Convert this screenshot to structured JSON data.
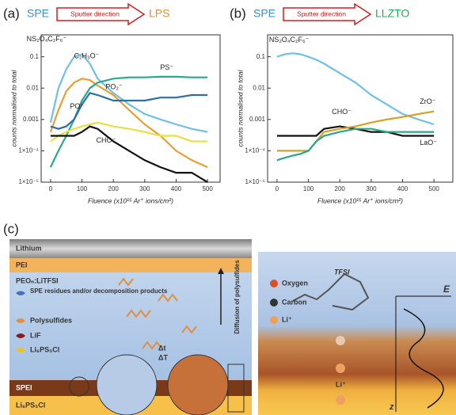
{
  "chart_data": [
    {
      "type": "line",
      "panel_label": "(a)",
      "header_left": "SPE",
      "header_middle": "Sputter direction",
      "header_right": "LPS",
      "x_label": "Fluence (x10¹⁵ Ar⁺ ions/cm²)",
      "y_label": "counts normalised to total",
      "log_y": true,
      "x": [
        0,
        25,
        50,
        75,
        100,
        125,
        150,
        200,
        250,
        300,
        350,
        400,
        450,
        500
      ],
      "xlim": [
        -30,
        540
      ],
      "xticks": [
        0,
        100,
        200,
        300,
        400,
        500
      ],
      "ylim": [
        1e-05,
        0.5
      ],
      "yticks": [
        {
          "value": 1e-05,
          "label": "1×10⁻⁵"
        },
        {
          "value": 0.0001,
          "label": "1×10⁻⁴"
        },
        0.001,
        0.01,
        0.1
      ],
      "series": [
        {
          "name": "NS₂O₄C₂F₆⁻",
          "color": "#6fc0e6",
          "values": [
            0.0008,
            0.01,
            0.04,
            0.1,
            0.12,
            0.06,
            0.02,
            0.007,
            0.003,
            0.0015,
            0.001,
            0.0007,
            0.0005,
            0.0004
          ]
        },
        {
          "name": "C₂H₃O⁻",
          "color": "#e8a030",
          "values": [
            0.0004,
            0.002,
            0.008,
            0.015,
            0.02,
            0.018,
            0.012,
            0.006,
            0.002,
            0.0007,
            0.0003,
            0.0001,
            5e-05,
            3e-05
          ]
        },
        {
          "name": "PS⁻",
          "color": "#2aa88a",
          "values": [
            3e-05,
            0.0001,
            0.0003,
            0.001,
            0.004,
            0.01,
            0.015,
            0.02,
            0.022,
            0.022,
            0.023,
            0.023,
            0.022,
            0.022
          ]
        },
        {
          "name": "PO₂⁻",
          "color": "#2a6fa8",
          "values": [
            0.0006,
            0.0005,
            0.0006,
            0.001,
            0.003,
            0.007,
            0.006,
            0.004,
            0.004,
            0.004,
            0.005,
            0.005,
            0.006,
            0.006
          ]
        },
        {
          "name": "PO⁻",
          "color": "#e6e040",
          "values": [
            0.0002,
            0.0003,
            0.0004,
            0.0005,
            0.0006,
            0.0007,
            0.0008,
            0.0006,
            0.0005,
            0.0004,
            0.0003,
            0.0003,
            0.0002,
            0.0002
          ]
        },
        {
          "name": "CHO⁻",
          "color": "#111111",
          "values": [
            0.0003,
            0.0003,
            0.0003,
            0.0003,
            0.0004,
            0.0006,
            0.0005,
            0.0002,
            0.0001,
            5e-05,
            3e-05,
            2e-05,
            2e-05,
            1e-05
          ]
        }
      ]
    },
    {
      "type": "line",
      "panel_label": "(b)",
      "header_left": "SPE",
      "header_middle": "Sputter direction",
      "header_right": "LLZTO",
      "x_label": "Fluence (x10¹⁵ Ar⁺ ions/cm²)",
      "y_label": "counts normalised to total",
      "log_y": true,
      "x": [
        0,
        25,
        50,
        75,
        100,
        125,
        150,
        200,
        250,
        300,
        350,
        400,
        450,
        500
      ],
      "xlim": [
        -30,
        560
      ],
      "xticks": [
        0,
        100,
        200,
        300,
        400,
        500
      ],
      "ylim": [
        1e-05,
        0.5
      ],
      "yticks": [
        {
          "value": 1e-05,
          "label": "1×10⁻⁵"
        },
        {
          "value": 0.0001,
          "label": "1×10⁻⁴"
        },
        0.001,
        0.01,
        0.1
      ],
      "series": [
        {
          "name": "NS₂O₄C₂F₆⁻",
          "color": "#6fc0e6",
          "values": [
            0.1,
            0.12,
            0.13,
            0.12,
            0.1,
            0.08,
            0.06,
            0.03,
            0.015,
            0.006,
            0.003,
            0.0015,
            0.001,
            0.0007
          ]
        },
        {
          "name": "CHO⁻",
          "color": "#111111",
          "values": [
            0.0003,
            0.0003,
            0.0003,
            0.0003,
            0.0003,
            0.0003,
            0.0005,
            0.0006,
            0.0005,
            0.0004,
            0.0004,
            0.0003,
            0.0003,
            0.0003
          ]
        },
        {
          "name": "ZrO⁻",
          "color": "#d9a020",
          "values": [
            0.0001,
            0.0001,
            0.0001,
            0.0001,
            0.0001,
            0.0002,
            0.0004,
            0.0005,
            0.0006,
            0.0008,
            0.001,
            0.0012,
            0.0015,
            0.0018
          ]
        },
        {
          "name": "LaO⁻",
          "color": "#2aa88a",
          "values": [
            5e-05,
            6e-05,
            7e-05,
            8e-05,
            0.0001,
            0.0002,
            0.0003,
            0.0004,
            0.0005,
            0.0005,
            0.0004,
            0.0004,
            0.0004,
            0.0004
          ]
        }
      ]
    }
  ],
  "schematic": {
    "panel_label": "(c)",
    "lithium": "Lithium",
    "pei": "PEI",
    "peo": "PEOₙ:LiTFSI",
    "spe_residues": "SPE residues and/or decomposition products",
    "polysulfides": "Polysulfides",
    "lif": "LiF",
    "lps_icon": "Li₆PS₅Cl",
    "diffusion": "Diffusion of polysulfides",
    "dt": "Δt",
    "dT": "ΔT",
    "spei": "SPEI",
    "lps": "Li₆PS₅Cl",
    "oxygen": "Oxygen",
    "carbon": "Carbon",
    "li": "Li⁺",
    "tfsi": "TFSI",
    "e_axis": "E",
    "z_axis": "z",
    "li_interface": "Li⁺"
  }
}
